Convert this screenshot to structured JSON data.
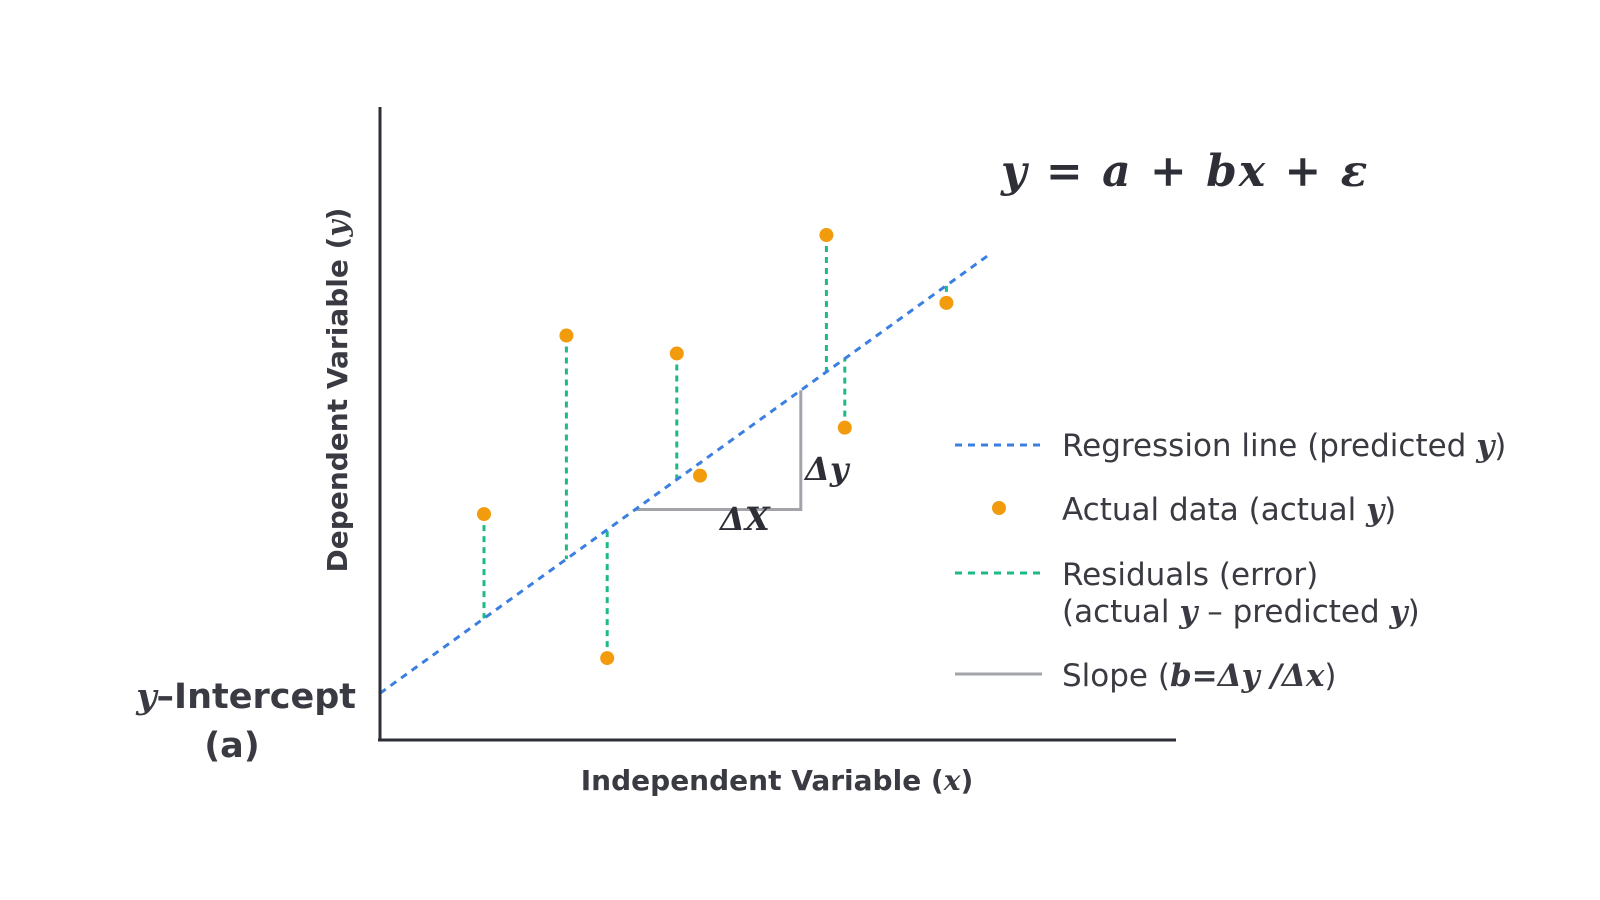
{
  "colors": {
    "axis": "#2e2f36",
    "regression": "#3b7fe0",
    "data_point": "#f29b0c",
    "residual": "#1dbb82",
    "slope": "#a3a4aa",
    "text": "#3a3b42"
  },
  "labels": {
    "x_axis_title": "Independent Variable (",
    "x_axis_var": "x",
    "x_axis_close": ")",
    "y_axis_title": "Dependent Variable (",
    "y_axis_var": "y",
    "y_axis_close": ")",
    "intercept_var": "y",
    "intercept_text": "–Intercept",
    "intercept_sub": "(a)",
    "equation": "y = a + bx + ε",
    "delta_x": "ΔX",
    "delta_y": "Δy"
  },
  "legend": {
    "regression": "Regression line (predicted ",
    "regression_var": "y",
    "regression_close": ")",
    "actual": "Actual data (actual ",
    "actual_var": "y",
    "actual_close": ")",
    "residuals_line1": "Residuals (error)",
    "residuals_line2_a": "(actual ",
    "residuals_line2_var1": "y",
    "residuals_line2_b": " – predicted ",
    "residuals_line2_var2": "y",
    "residuals_line2_close": ")",
    "slope_a": "Slope (",
    "slope_math": "b=Δy /Δx",
    "slope_close": ")"
  },
  "chart_data": {
    "type": "scatter",
    "title": "",
    "xlabel": "Independent Variable (x)",
    "ylabel": "Dependent Variable (y)",
    "xlim": [
      0,
      100
    ],
    "ylim": [
      0,
      100
    ],
    "regression": {
      "intercept": 7.3,
      "slope": 0.9,
      "x_end": 76
    },
    "points": [
      {
        "x": 13,
        "y": 35.3
      },
      {
        "x": 23.3,
        "y": 63.2
      },
      {
        "x": 28.4,
        "y": 12.8
      },
      {
        "x": 37.1,
        "y": 60.4
      },
      {
        "x": 40,
        "y": 41.3
      },
      {
        "x": 55.8,
        "y": 78.9
      },
      {
        "x": 58.1,
        "y": 48.8
      },
      {
        "x": 70.8,
        "y": 68.3
      }
    ],
    "slope_triangle": {
      "x1": 31.9,
      "x2": 52.6
    }
  }
}
